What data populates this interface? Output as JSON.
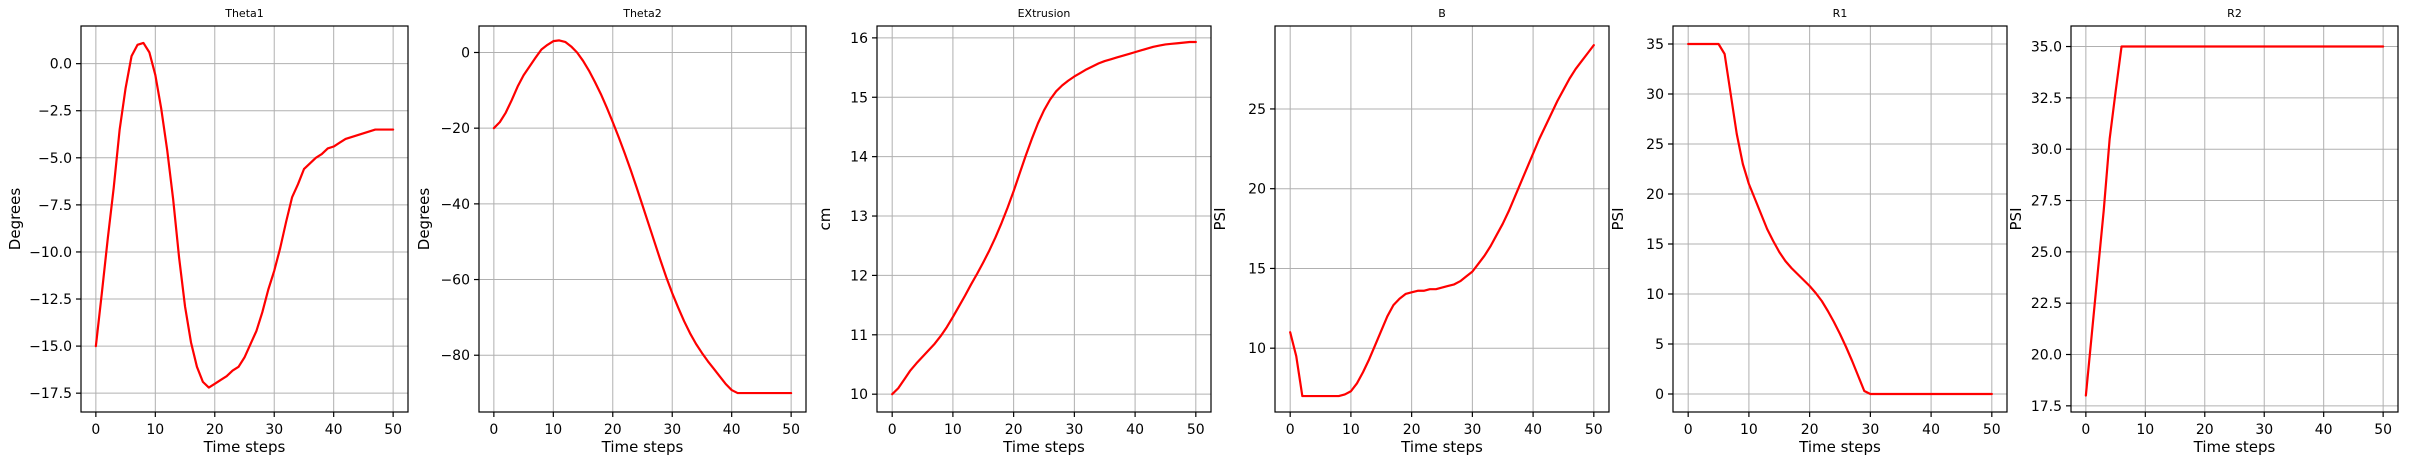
{
  "chart_data": [
    {
      "type": "line",
      "title": "Theta1",
      "xlabel": "Time steps",
      "ylabel": "Degrees",
      "xlim": [
        -2.5,
        52.5
      ],
      "ylim": [
        -18.5,
        2.0
      ],
      "xticks": [
        0,
        10,
        20,
        30,
        40,
        50
      ],
      "yticks": [
        0.0,
        -2.5,
        -5.0,
        -7.5,
        -10.0,
        -12.5,
        -15.0,
        -17.5
      ],
      "ytick_labels": [
        "0.0",
        "−2.5",
        "−5.0",
        "−7.5",
        "−10.0",
        "−12.5",
        "−15.0",
        "−17.5"
      ],
      "grid": true,
      "color": "#ff0000",
      "series": [
        {
          "x": [
            0,
            1,
            2,
            3,
            4,
            5,
            6,
            7,
            8,
            9,
            10,
            11,
            12,
            13,
            14,
            15,
            16,
            17,
            18,
            19,
            20,
            21,
            22,
            23,
            24,
            25,
            26,
            27,
            28,
            29,
            30,
            31,
            32,
            33,
            34,
            35,
            36,
            37,
            38,
            39,
            40,
            41,
            42,
            43,
            44,
            45,
            46,
            47,
            48,
            49,
            50
          ],
          "values": [
            -15.0,
            -12.2,
            -9.3,
            -6.6,
            -3.5,
            -1.3,
            0.4,
            1.0,
            1.1,
            0.6,
            -0.6,
            -2.4,
            -4.6,
            -7.2,
            -10.3,
            -12.9,
            -14.8,
            -16.1,
            -16.9,
            -17.2,
            -17.0,
            -16.8,
            -16.6,
            -16.3,
            -16.1,
            -15.6,
            -14.9,
            -14.2,
            -13.2,
            -12.0,
            -11.0,
            -9.8,
            -8.4,
            -7.1,
            -6.4,
            -5.6,
            -5.3,
            -5.0,
            -4.8,
            -4.5,
            -4.4,
            -4.2,
            -4.0,
            -3.9,
            -3.8,
            -3.7,
            -3.6,
            -3.5,
            -3.5,
            -3.5,
            -3.5
          ]
        }
      ]
    },
    {
      "type": "line",
      "title": "Theta2",
      "xlabel": "Time steps",
      "ylabel": "Degrees",
      "xlim": [
        -2.5,
        52.5
      ],
      "ylim": [
        -95,
        7
      ],
      "xticks": [
        0,
        10,
        20,
        30,
        40,
        50
      ],
      "yticks": [
        0,
        -20,
        -40,
        -60,
        -80
      ],
      "ytick_labels": [
        "0",
        "−20",
        "−40",
        "−60",
        "−80"
      ],
      "grid": true,
      "color": "#ff0000",
      "series": [
        {
          "x": [
            0,
            1,
            2,
            3,
            4,
            5,
            6,
            7,
            8,
            9,
            10,
            11,
            12,
            13,
            14,
            15,
            16,
            17,
            18,
            19,
            20,
            21,
            22,
            23,
            24,
            25,
            26,
            27,
            28,
            29,
            30,
            31,
            32,
            33,
            34,
            35,
            36,
            37,
            38,
            39,
            40,
            41,
            42,
            43,
            44,
            45,
            46,
            47,
            48,
            49,
            50
          ],
          "values": [
            -20.0,
            -18.4,
            -15.9,
            -12.6,
            -9.0,
            -6.0,
            -3.7,
            -1.4,
            0.8,
            2.0,
            3.0,
            3.2,
            2.8,
            1.6,
            0.0,
            -2.2,
            -4.8,
            -7.8,
            -11.0,
            -14.6,
            -18.4,
            -22.4,
            -26.6,
            -31.0,
            -35.6,
            -40.4,
            -45.2,
            -50.0,
            -54.8,
            -59.4,
            -63.6,
            -67.4,
            -71.0,
            -74.2,
            -77.0,
            -79.4,
            -81.6,
            -83.6,
            -85.6,
            -87.6,
            -89.2,
            -90.0,
            -90.0,
            -90.0,
            -90.0,
            -90.0,
            -90.0,
            -90.0,
            -90.0,
            -90.0,
            -90.0
          ]
        }
      ]
    },
    {
      "type": "line",
      "title": "EXtrusion",
      "xlabel": "Time steps",
      "ylabel": "cm",
      "xlim": [
        -2.5,
        52.5
      ],
      "ylim": [
        9.7,
        16.2
      ],
      "xticks": [
        0,
        10,
        20,
        30,
        40,
        50
      ],
      "yticks": [
        10,
        11,
        12,
        13,
        14,
        15,
        16
      ],
      "ytick_labels": [
        "10",
        "11",
        "12",
        "13",
        "14",
        "15",
        "16"
      ],
      "grid": true,
      "color": "#ff0000",
      "series": [
        {
          "x": [
            0,
            1,
            2,
            3,
            4,
            5,
            6,
            7,
            8,
            9,
            10,
            11,
            12,
            13,
            14,
            15,
            16,
            17,
            18,
            19,
            20,
            21,
            22,
            23,
            24,
            25,
            26,
            27,
            28,
            29,
            30,
            31,
            32,
            33,
            34,
            35,
            36,
            37,
            38,
            39,
            40,
            41,
            42,
            43,
            44,
            45,
            46,
            47,
            48,
            49,
            50
          ],
          "values": [
            10.0,
            10.1,
            10.25,
            10.4,
            10.52,
            10.63,
            10.74,
            10.85,
            10.98,
            11.13,
            11.3,
            11.48,
            11.66,
            11.85,
            12.03,
            12.22,
            12.42,
            12.64,
            12.88,
            13.14,
            13.42,
            13.72,
            14.02,
            14.3,
            14.56,
            14.78,
            14.96,
            15.1,
            15.2,
            15.28,
            15.35,
            15.41,
            15.47,
            15.52,
            15.57,
            15.61,
            15.64,
            15.67,
            15.7,
            15.73,
            15.76,
            15.79,
            15.82,
            15.85,
            15.87,
            15.89,
            15.9,
            15.91,
            15.92,
            15.93,
            15.93
          ]
        }
      ]
    },
    {
      "type": "line",
      "title": "B",
      "xlabel": "Time steps",
      "ylabel": "PSI",
      "xlim": [
        -2.5,
        52.5
      ],
      "ylim": [
        6.0,
        30.2
      ],
      "xticks": [
        0,
        10,
        20,
        30,
        40,
        50
      ],
      "yticks": [
        10,
        15,
        20,
        25
      ],
      "ytick_labels": [
        "10",
        "15",
        "20",
        "25"
      ],
      "grid": true,
      "color": "#ff0000",
      "series": [
        {
          "x": [
            0,
            1,
            2,
            3,
            4,
            5,
            6,
            7,
            8,
            9,
            10,
            11,
            12,
            13,
            14,
            15,
            16,
            17,
            18,
            19,
            20,
            21,
            22,
            23,
            24,
            25,
            26,
            27,
            28,
            29,
            30,
            31,
            32,
            33,
            34,
            35,
            36,
            37,
            38,
            39,
            40,
            41,
            42,
            43,
            44,
            45,
            46,
            47,
            48,
            49,
            50
          ],
          "values": [
            11.0,
            9.5,
            7.0,
            7.0,
            7.0,
            7.0,
            7.0,
            7.0,
            7.0,
            7.1,
            7.3,
            7.8,
            8.5,
            9.3,
            10.2,
            11.1,
            12.0,
            12.7,
            13.1,
            13.4,
            13.5,
            13.6,
            13.6,
            13.7,
            13.7,
            13.8,
            13.9,
            14.0,
            14.2,
            14.5,
            14.8,
            15.3,
            15.8,
            16.4,
            17.1,
            17.8,
            18.6,
            19.5,
            20.4,
            21.3,
            22.2,
            23.1,
            23.9,
            24.7,
            25.5,
            26.2,
            26.9,
            27.5,
            28.0,
            28.5,
            29.0
          ]
        }
      ]
    },
    {
      "type": "line",
      "title": "R1",
      "xlabel": "Time steps",
      "ylabel": "PSI",
      "xlim": [
        -2.5,
        52.5
      ],
      "ylim": [
        -1.8,
        36.8
      ],
      "xticks": [
        0,
        10,
        20,
        30,
        40,
        50
      ],
      "yticks": [
        0,
        5,
        10,
        15,
        20,
        25,
        30,
        35
      ],
      "ytick_labels": [
        "0",
        "5",
        "10",
        "15",
        "20",
        "25",
        "30",
        "35"
      ],
      "grid": true,
      "color": "#ff0000",
      "series": [
        {
          "x": [
            0,
            1,
            2,
            3,
            4,
            5,
            6,
            7,
            8,
            9,
            10,
            11,
            12,
            13,
            14,
            15,
            16,
            17,
            18,
            19,
            20,
            21,
            22,
            23,
            24,
            25,
            26,
            27,
            28,
            29,
            30,
            31,
            32,
            33,
            34,
            35,
            36,
            37,
            38,
            39,
            40,
            41,
            42,
            43,
            44,
            45,
            46,
            47,
            48,
            49,
            50
          ],
          "values": [
            35,
            35,
            35,
            35,
            35,
            35,
            34,
            30,
            26,
            23,
            21,
            19.5,
            18,
            16.5,
            15.3,
            14.2,
            13.3,
            12.6,
            12,
            11.4,
            10.8,
            10.1,
            9.3,
            8.3,
            7.2,
            6,
            4.7,
            3.3,
            1.8,
            0.3,
            0,
            0,
            0,
            0,
            0,
            0,
            0,
            0,
            0,
            0,
            0,
            0,
            0,
            0,
            0,
            0,
            0,
            0,
            0,
            0,
            0
          ]
        }
      ]
    },
    {
      "type": "line",
      "title": "R2",
      "xlabel": "Time steps",
      "ylabel": "PSI",
      "xlim": [
        -2.5,
        52.5
      ],
      "ylim": [
        17.2,
        36.0
      ],
      "xticks": [
        0,
        10,
        20,
        30,
        40,
        50
      ],
      "yticks": [
        17.5,
        20.0,
        22.5,
        25.0,
        27.5,
        30.0,
        32.5,
        35.0
      ],
      "ytick_labels": [
        "17.5",
        "20.0",
        "22.5",
        "25.0",
        "27.5",
        "30.0",
        "32.5",
        "35.0"
      ],
      "grid": true,
      "color": "#ff0000",
      "series": [
        {
          "x": [
            0,
            1,
            2,
            3,
            4,
            5,
            6,
            7,
            8,
            9,
            10,
            11,
            12,
            13,
            14,
            15,
            16,
            17,
            18,
            19,
            20,
            21,
            22,
            23,
            24,
            25,
            26,
            27,
            28,
            29,
            30,
            31,
            32,
            33,
            34,
            35,
            36,
            37,
            38,
            39,
            40,
            41,
            42,
            43,
            44,
            45,
            46,
            47,
            48,
            49,
            50
          ],
          "values": [
            18,
            21,
            24,
            27,
            30.5,
            32.8,
            35,
            35,
            35,
            35,
            35,
            35,
            35,
            35,
            35,
            35,
            35,
            35,
            35,
            35,
            35,
            35,
            35,
            35,
            35,
            35,
            35,
            35,
            35,
            35,
            35,
            35,
            35,
            35,
            35,
            35,
            35,
            35,
            35,
            35,
            35,
            35,
            35,
            35,
            35,
            35,
            35,
            35,
            35,
            35,
            35
          ]
        }
      ]
    }
  ]
}
